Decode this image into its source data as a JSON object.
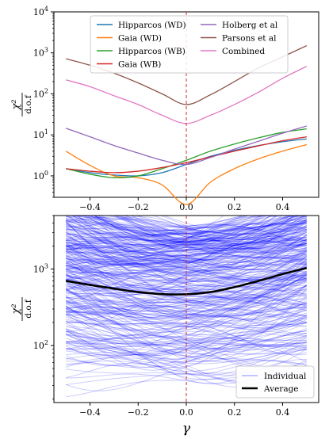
{
  "chart_data": [
    {
      "type": "line",
      "title": "",
      "xlabel": "",
      "ylabel": "χ²/d.o.f",
      "yscale": "log",
      "xlim": [
        -0.55,
        0.55
      ],
      "ylim": [
        0.3,
        10000
      ],
      "xticks": [
        -0.4,
        -0.2,
        0.0,
        0.2,
        0.4
      ],
      "xticklabels": [
        "−0.4",
        "−0.2",
        "0.0",
        "0.2",
        "0.4"
      ],
      "yticks": [
        1,
        10,
        100,
        1000,
        10000
      ],
      "yticklabels": [
        "10^0",
        "10^1",
        "10^2",
        "10^3",
        "10^4"
      ],
      "vline_x": 0,
      "vline_color": "#d62728",
      "legend_position": "top-center",
      "legend_columns": 2,
      "x": [
        -0.5,
        -0.4,
        -0.3,
        -0.2,
        -0.1,
        0.0,
        0.1,
        0.2,
        0.3,
        0.4,
        0.5
      ],
      "series": [
        {
          "name": "Hipparcos (WD)",
          "color": "#1f77b4",
          "values": [
            1.5,
            1.2,
            1.05,
            1.0,
            1.2,
            1.9,
            3.0,
            4.2,
            5.5,
            6.8,
            8.0
          ]
        },
        {
          "name": "Gaia (WD)",
          "color": "#ff7f0e",
          "values": [
            4.0,
            1.8,
            1.0,
            0.9,
            0.6,
            0.2,
            0.7,
            1.5,
            2.6,
            4.0,
            5.8
          ]
        },
        {
          "name": "Hipparcos (WB)",
          "color": "#2ca02c",
          "values": [
            1.5,
            1.1,
            0.9,
            1.0,
            1.5,
            2.4,
            4.0,
            6.0,
            8.5,
            11.5,
            14.0
          ]
        },
        {
          "name": "Gaia (WB)",
          "color": "#d62728",
          "values": [
            1.5,
            1.3,
            1.2,
            1.3,
            1.6,
            2.1,
            2.9,
            4.0,
            5.4,
            7.2,
            9.0
          ]
        },
        {
          "name": "Holberg et al",
          "color": "#9467bd",
          "values": [
            14.5,
            9.0,
            5.5,
            3.6,
            2.4,
            1.9,
            2.8,
            4.5,
            7.0,
            11.0,
            16.5
          ]
        },
        {
          "name": "Parsons et al",
          "color": "#8c564b",
          "values": [
            720,
            500,
            320,
            185,
            100,
            55,
            95,
            200,
            430,
            800,
            1500
          ]
        },
        {
          "name": "Combined",
          "color": "#e377c2",
          "values": [
            220,
            150,
            90,
            55,
            30,
            19,
            30,
            55,
            110,
            240,
            470
          ]
        }
      ]
    },
    {
      "type": "line",
      "title": "",
      "xlabel": "γ",
      "ylabel": "χ²/d.o.f",
      "yscale": "log",
      "xlim": [
        -0.55,
        0.55
      ],
      "ylim": [
        18,
        5000
      ],
      "xticks": [
        -0.4,
        -0.2,
        0.0,
        0.2,
        0.4
      ],
      "xticklabels": [
        "−0.4",
        "−0.2",
        "0.0",
        "0.2",
        "0.4"
      ],
      "yticks": [
        100,
        1000
      ],
      "yticklabels": [
        "10^2",
        "10^3"
      ],
      "vline_x": 0,
      "vline_color": "#d62728",
      "legend_position": "bottom-right",
      "x": [
        -0.5,
        -0.4,
        -0.3,
        -0.2,
        -0.1,
        0.0,
        0.1,
        0.2,
        0.3,
        0.4,
        0.5
      ],
      "series": [
        {
          "name": "Individual",
          "color": "#0000ff",
          "note_count": 350,
          "y_range": [
            25,
            4200
          ]
        },
        {
          "name": "Average",
          "color": "#000000",
          "values": [
            700,
            620,
            555,
            500,
            470,
            468,
            500,
            580,
            700,
            860,
            1030
          ]
        }
      ]
    }
  ]
}
